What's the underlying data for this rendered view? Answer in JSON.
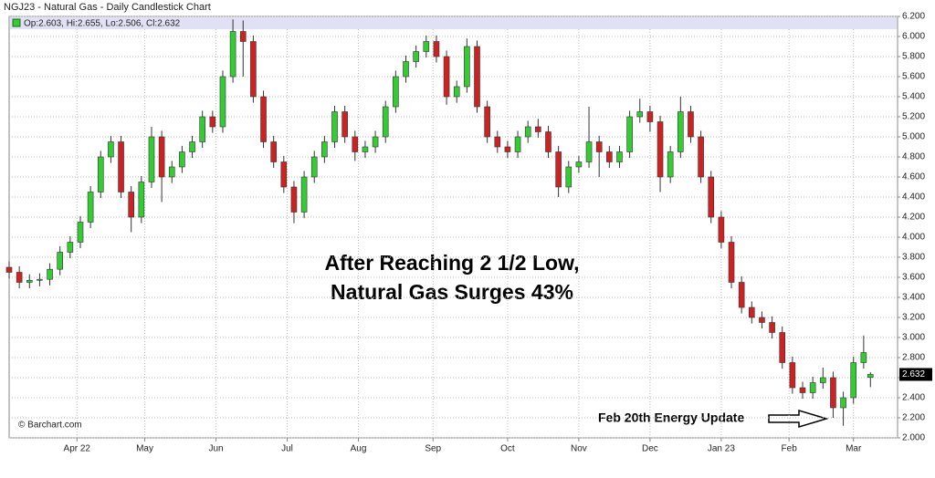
{
  "chart_data": {
    "type": "candlestick",
    "title": "NGJ23 - Natural Gas - Daily Candlestick Chart",
    "legend_text": "Op:2.603, Hi:2.655, Lo:2.506, Cl:2.632",
    "annotations": [
      "After Reaching 2 1/2 Low,",
      "Natural Gas Surges 43%",
      "Feb 20th Energy Update"
    ],
    "credit": "© Barchart.com",
    "up_color": "#33cc33",
    "down_color": "#cc2222",
    "grid": true,
    "xlim": [
      0,
      262
    ],
    "ylim": [
      2,
      6.2
    ],
    "xticks": [
      {
        "value": 20,
        "label": "Apr 22"
      },
      {
        "value": 40,
        "label": "May"
      },
      {
        "value": 61,
        "label": "Jun"
      },
      {
        "value": 82,
        "label": "Jul"
      },
      {
        "value": 103,
        "label": "Aug"
      },
      {
        "value": 125,
        "label": "Sep"
      },
      {
        "value": 147,
        "label": "Oct"
      },
      {
        "value": 168,
        "label": "Nov"
      },
      {
        "value": 189,
        "label": "Dec"
      },
      {
        "value": 210,
        "label": "Jan 23"
      },
      {
        "value": 230,
        "label": "Feb"
      },
      {
        "value": 249,
        "label": "Mar"
      }
    ],
    "yticks": [
      {
        "value": 2,
        "label": "2.000"
      },
      {
        "value": 2.2,
        "label": "2.200"
      },
      {
        "value": 2.4,
        "label": "2.400"
      },
      {
        "value": 2.6,
        "label": "2.600"
      },
      {
        "value": 2.8,
        "label": "2.800"
      },
      {
        "value": 3,
        "label": "3.000"
      },
      {
        "value": 3.2,
        "label": "3.200"
      },
      {
        "value": 3.4,
        "label": "3.400"
      },
      {
        "value": 3.6,
        "label": "3.600"
      },
      {
        "value": 3.8,
        "label": "3.800"
      },
      {
        "value": 4,
        "label": "4.000"
      },
      {
        "value": 4.2,
        "label": "4.200"
      },
      {
        "value": 4.4,
        "label": "4.400"
      },
      {
        "value": 4.6,
        "label": "4.600"
      },
      {
        "value": 4.8,
        "label": "4.800"
      },
      {
        "value": 5,
        "label": "5.000"
      },
      {
        "value": 5.2,
        "label": "5.200"
      },
      {
        "value": 5.4,
        "label": "5.400"
      },
      {
        "value": 5.6,
        "label": "5.600"
      },
      {
        "value": 5.8,
        "label": "5.800"
      },
      {
        "value": 6,
        "label": "6.000"
      },
      {
        "value": 6.2,
        "label": "6.200"
      }
    ],
    "x": [
      0,
      3,
      6,
      9,
      12,
      15,
      18,
      21,
      24,
      27,
      30,
      33,
      36,
      39,
      42,
      45,
      48,
      51,
      54,
      57,
      60,
      63,
      66,
      69,
      72,
      75,
      78,
      81,
      84,
      87,
      90,
      93,
      96,
      99,
      102,
      105,
      108,
      111,
      114,
      117,
      120,
      123,
      126,
      129,
      132,
      135,
      138,
      141,
      144,
      147,
      150,
      153,
      156,
      159,
      162,
      165,
      168,
      171,
      174,
      177,
      180,
      183,
      186,
      189,
      192,
      195,
      198,
      201,
      204,
      207,
      210,
      213,
      216,
      219,
      222,
      225,
      228,
      231,
      234,
      237,
      240,
      243,
      246,
      249,
      252,
      254
    ],
    "open": [
      3.7,
      3.65,
      3.55,
      3.57,
      3.58,
      3.68,
      3.85,
      3.95,
      4.15,
      4.45,
      4.8,
      4.95,
      4.45,
      4.2,
      4.55,
      5.0,
      4.6,
      4.7,
      4.85,
      4.95,
      5.2,
      5.1,
      5.6,
      6.05,
      5.95,
      5.4,
      4.95,
      4.75,
      4.5,
      4.25,
      4.6,
      4.8,
      4.95,
      5.25,
      5.0,
      4.85,
      4.9,
      5.0,
      5.3,
      5.6,
      5.75,
      5.85,
      5.95,
      5.8,
      5.4,
      5.5,
      5.9,
      5.3,
      5.0,
      4.9,
      4.85,
      5.0,
      5.1,
      5.05,
      4.85,
      4.5,
      4.7,
      4.75,
      4.95,
      4.85,
      4.75,
      4.85,
      5.2,
      5.25,
      5.15,
      4.6,
      4.85,
      5.25,
      5.0,
      4.6,
      4.2,
      3.95,
      3.55,
      3.3,
      3.2,
      3.15,
      3.05,
      2.75,
      2.5,
      2.45,
      2.55,
      2.6,
      2.3,
      2.4,
      2.75,
      2.603
    ],
    "high": [
      3.76,
      3.71,
      3.63,
      3.64,
      3.74,
      3.91,
      4.01,
      4.21,
      4.51,
      4.86,
      5.01,
      5.01,
      4.51,
      4.61,
      5.1,
      5.06,
      4.76,
      4.91,
      5.01,
      5.26,
      5.26,
      5.66,
      6.17,
      6.16,
      6.01,
      5.46,
      5.01,
      4.81,
      4.56,
      4.66,
      4.86,
      5.01,
      5.31,
      5.31,
      5.06,
      4.96,
      5.06,
      5.36,
      5.66,
      5.81,
      5.91,
      6.01,
      6.01,
      5.86,
      5.56,
      5.98,
      5.96,
      5.36,
      5.06,
      4.96,
      5.06,
      5.16,
      5.18,
      5.11,
      4.91,
      4.76,
      4.81,
      5.3,
      5.01,
      4.91,
      4.91,
      5.26,
      5.38,
      5.31,
      5.21,
      4.91,
      5.4,
      5.31,
      5.06,
      4.66,
      4.26,
      4.01,
      3.61,
      3.36,
      3.26,
      3.21,
      3.11,
      2.81,
      2.56,
      2.61,
      2.7,
      2.66,
      2.46,
      2.81,
      3.02,
      2.655
    ],
    "low": [
      3.59,
      3.49,
      3.49,
      3.51,
      3.52,
      3.62,
      3.79,
      3.89,
      4.09,
      4.39,
      4.74,
      4.39,
      4.05,
      4.14,
      4.49,
      4.35,
      4.54,
      4.64,
      4.79,
      4.89,
      5.04,
      5.04,
      5.54,
      5.6,
      5.34,
      4.89,
      4.69,
      4.44,
      4.14,
      4.19,
      4.54,
      4.74,
      4.89,
      4.94,
      4.76,
      4.79,
      4.84,
      4.94,
      5.24,
      5.54,
      5.69,
      5.79,
      5.74,
      5.32,
      5.34,
      5.44,
      5.24,
      4.94,
      4.84,
      4.79,
      4.79,
      4.94,
      4.99,
      4.79,
      4.4,
      4.44,
      4.64,
      4.69,
      4.6,
      4.69,
      4.69,
      4.79,
      5.14,
      5.05,
      4.45,
      4.54,
      4.79,
      4.94,
      4.54,
      4.14,
      3.89,
      3.49,
      3.24,
      3.14,
      3.09,
      2.99,
      2.69,
      2.44,
      2.39,
      2.39,
      2.49,
      2.2,
      2.12,
      2.34,
      2.69,
      2.506
    ],
    "close": [
      3.65,
      3.55,
      3.57,
      3.58,
      3.68,
      3.85,
      3.95,
      4.15,
      4.45,
      4.8,
      4.95,
      4.45,
      4.2,
      4.55,
      5.0,
      4.6,
      4.7,
      4.85,
      4.95,
      5.2,
      5.1,
      5.6,
      6.05,
      5.95,
      5.4,
      4.95,
      4.75,
      4.5,
      4.25,
      4.6,
      4.8,
      4.95,
      5.25,
      5.0,
      4.85,
      4.9,
      5.0,
      5.3,
      5.6,
      5.75,
      5.85,
      5.95,
      5.8,
      5.4,
      5.5,
      5.9,
      5.3,
      5.0,
      4.9,
      4.85,
      5.0,
      5.1,
      5.05,
      4.85,
      4.5,
      4.7,
      4.75,
      4.95,
      4.85,
      4.75,
      4.85,
      5.2,
      5.25,
      5.15,
      4.6,
      4.85,
      5.25,
      5.0,
      4.6,
      4.2,
      3.95,
      3.55,
      3.3,
      3.2,
      3.15,
      3.05,
      2.75,
      2.5,
      2.45,
      2.55,
      2.6,
      2.3,
      2.4,
      2.75,
      2.85,
      2.632
    ]
  }
}
